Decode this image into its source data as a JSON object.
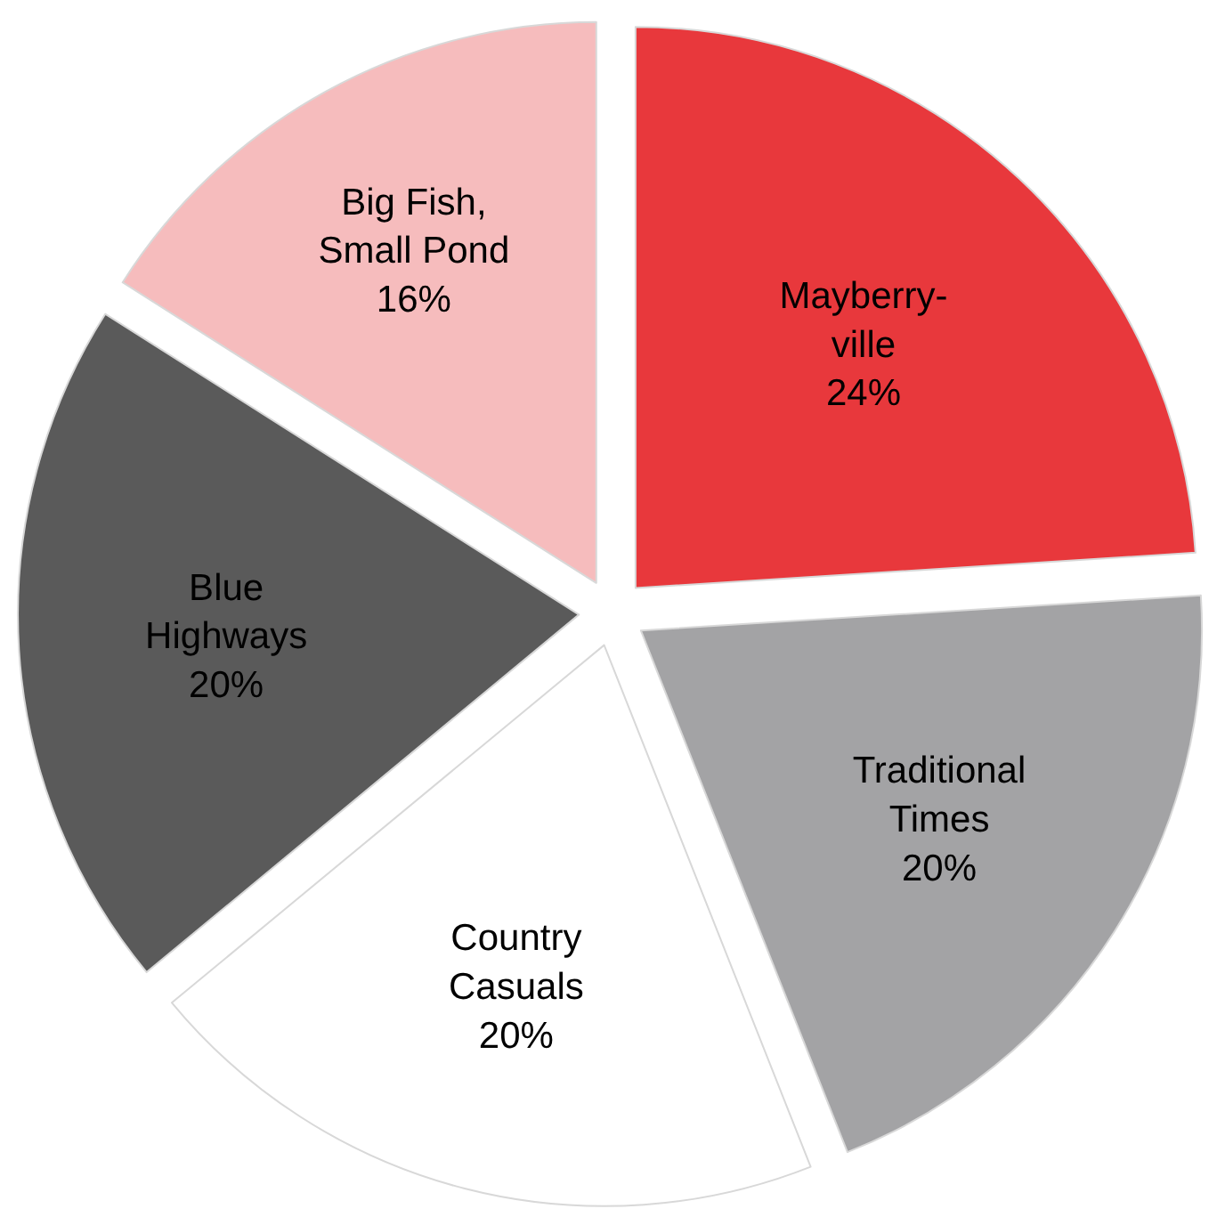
{
  "chart_data": {
    "type": "pie",
    "categories": [
      "Mayberry-ville",
      "Traditional Times",
      "Country Casuals",
      "Blue Highways",
      "Big Fish, Small Pond"
    ],
    "values": [
      24,
      20,
      20,
      20,
      16
    ],
    "value_labels": [
      "24%",
      "20%",
      "20%",
      "20%",
      "16%"
    ],
    "colors": [
      "#e8383c",
      "#a3a3a5",
      "#ffffff",
      "#5a5a5a",
      "#f6bcbd"
    ],
    "legend": false
  }
}
